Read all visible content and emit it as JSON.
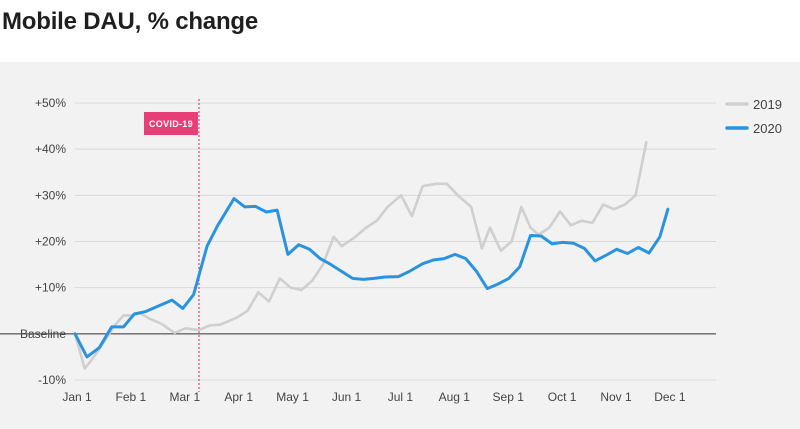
{
  "chart_data": {
    "type": "line",
    "title": "Mobile DAU, % change",
    "y_ticks": [
      {
        "value": 50,
        "label": "+50%"
      },
      {
        "value": 40,
        "label": "+40%"
      },
      {
        "value": 30,
        "label": "+30%"
      },
      {
        "value": 20,
        "label": "+20%"
      },
      {
        "value": 10,
        "label": "+10%"
      },
      {
        "value": 0,
        "label": "Baseline"
      },
      {
        "value": -10,
        "label": "-10%"
      }
    ],
    "ylim": [
      -10,
      50
    ],
    "x_ticks": [
      {
        "month": 0,
        "label": "Jan 1"
      },
      {
        "month": 1,
        "label": "Feb 1"
      },
      {
        "month": 2,
        "label": "Mar 1"
      },
      {
        "month": 3,
        "label": "Apr 1"
      },
      {
        "month": 4,
        "label": "May 1"
      },
      {
        "month": 5,
        "label": "Jun 1"
      },
      {
        "month": 6,
        "label": "Jul 1"
      },
      {
        "month": 7,
        "label": "Aug 1"
      },
      {
        "month": 8,
        "label": "Sep 1"
      },
      {
        "month": 9,
        "label": "Oct 1"
      },
      {
        "month": 10,
        "label": "Nov 1"
      },
      {
        "month": 11,
        "label": "Dec 1"
      }
    ],
    "xlim": [
      0,
      12
    ],
    "annotation": {
      "label": "COVID-19",
      "month": 2.3,
      "color": "#e83e78"
    },
    "legend": {
      "position": "top-right"
    },
    "colors": {
      "2019": "#cfcfcf",
      "2020": "#2b93dd",
      "baseline": "#333333"
    },
    "series": [
      {
        "name": "2019",
        "points": [
          [
            0,
            0
          ],
          [
            0.18,
            -7.5
          ],
          [
            0.35,
            -5
          ],
          [
            0.55,
            -1.5
          ],
          [
            0.75,
            2
          ],
          [
            0.9,
            4
          ],
          [
            1.05,
            4
          ],
          [
            1.2,
            4.5
          ],
          [
            1.4,
            3.2
          ],
          [
            1.6,
            2.2
          ],
          [
            1.85,
            0.2
          ],
          [
            2.05,
            1.2
          ],
          [
            2.3,
            0.8
          ],
          [
            2.5,
            1.8
          ],
          [
            2.7,
            2
          ],
          [
            3.0,
            3.5
          ],
          [
            3.2,
            5
          ],
          [
            3.4,
            9
          ],
          [
            3.6,
            7
          ],
          [
            3.8,
            12
          ],
          [
            4.0,
            10
          ],
          [
            4.2,
            9.5
          ],
          [
            4.4,
            11.5
          ],
          [
            4.6,
            15
          ],
          [
            4.8,
            21
          ],
          [
            4.95,
            19
          ],
          [
            5.2,
            21
          ],
          [
            5.4,
            23
          ],
          [
            5.6,
            24.5
          ],
          [
            5.8,
            27.5
          ],
          [
            6.05,
            30
          ],
          [
            6.25,
            25.5
          ],
          [
            6.45,
            32
          ],
          [
            6.7,
            32.5
          ],
          [
            6.9,
            32.5
          ],
          [
            7.1,
            30
          ],
          [
            7.35,
            27.5
          ],
          [
            7.55,
            18.5
          ],
          [
            7.7,
            23
          ],
          [
            7.9,
            18
          ],
          [
            8.1,
            20
          ],
          [
            8.28,
            27.5
          ],
          [
            8.45,
            23
          ],
          [
            8.6,
            21.5
          ],
          [
            8.8,
            23
          ],
          [
            9.0,
            26.5
          ],
          [
            9.2,
            23.5
          ],
          [
            9.4,
            24.5
          ],
          [
            9.6,
            24
          ],
          [
            9.8,
            28
          ],
          [
            10.0,
            27
          ],
          [
            10.2,
            28
          ],
          [
            10.4,
            30
          ],
          [
            10.6,
            41.5
          ]
        ]
      },
      {
        "name": "2020",
        "points": [
          [
            0,
            0
          ],
          [
            0.22,
            -5
          ],
          [
            0.45,
            -3
          ],
          [
            0.68,
            1.5
          ],
          [
            0.9,
            1.5
          ],
          [
            1.1,
            4.3
          ],
          [
            1.3,
            4.8
          ],
          [
            1.5,
            5.8
          ],
          [
            1.8,
            7.3
          ],
          [
            2.0,
            5.5
          ],
          [
            2.2,
            8.5
          ],
          [
            2.45,
            19
          ],
          [
            2.65,
            23.5
          ],
          [
            2.95,
            29.3
          ],
          [
            3.15,
            27.5
          ],
          [
            3.35,
            27.6
          ],
          [
            3.55,
            26.4
          ],
          [
            3.75,
            26.8
          ],
          [
            3.95,
            17.2
          ],
          [
            4.15,
            19.3
          ],
          [
            4.35,
            18.3
          ],
          [
            4.55,
            16.3
          ],
          [
            4.75,
            15
          ],
          [
            4.95,
            13.5
          ],
          [
            5.15,
            12
          ],
          [
            5.35,
            11.8
          ],
          [
            5.55,
            12
          ],
          [
            5.75,
            12.3
          ],
          [
            6.0,
            12.4
          ],
          [
            6.2,
            13.5
          ],
          [
            6.45,
            15.2
          ],
          [
            6.65,
            16
          ],
          [
            6.85,
            16.3
          ],
          [
            7.05,
            17.2
          ],
          [
            7.25,
            16.3
          ],
          [
            7.45,
            13.5
          ],
          [
            7.65,
            9.8
          ],
          [
            7.85,
            10.8
          ],
          [
            8.05,
            12
          ],
          [
            8.25,
            14.5
          ],
          [
            8.45,
            21.3
          ],
          [
            8.65,
            21.2
          ],
          [
            8.85,
            19.5
          ],
          [
            9.05,
            19.8
          ],
          [
            9.25,
            19.6
          ],
          [
            9.45,
            18.5
          ],
          [
            9.65,
            15.8
          ],
          [
            9.85,
            17
          ],
          [
            10.05,
            18.3
          ],
          [
            10.25,
            17.4
          ],
          [
            10.45,
            18.7
          ],
          [
            10.65,
            17.5
          ],
          [
            10.85,
            21
          ],
          [
            11.0,
            27
          ]
        ]
      }
    ]
  }
}
